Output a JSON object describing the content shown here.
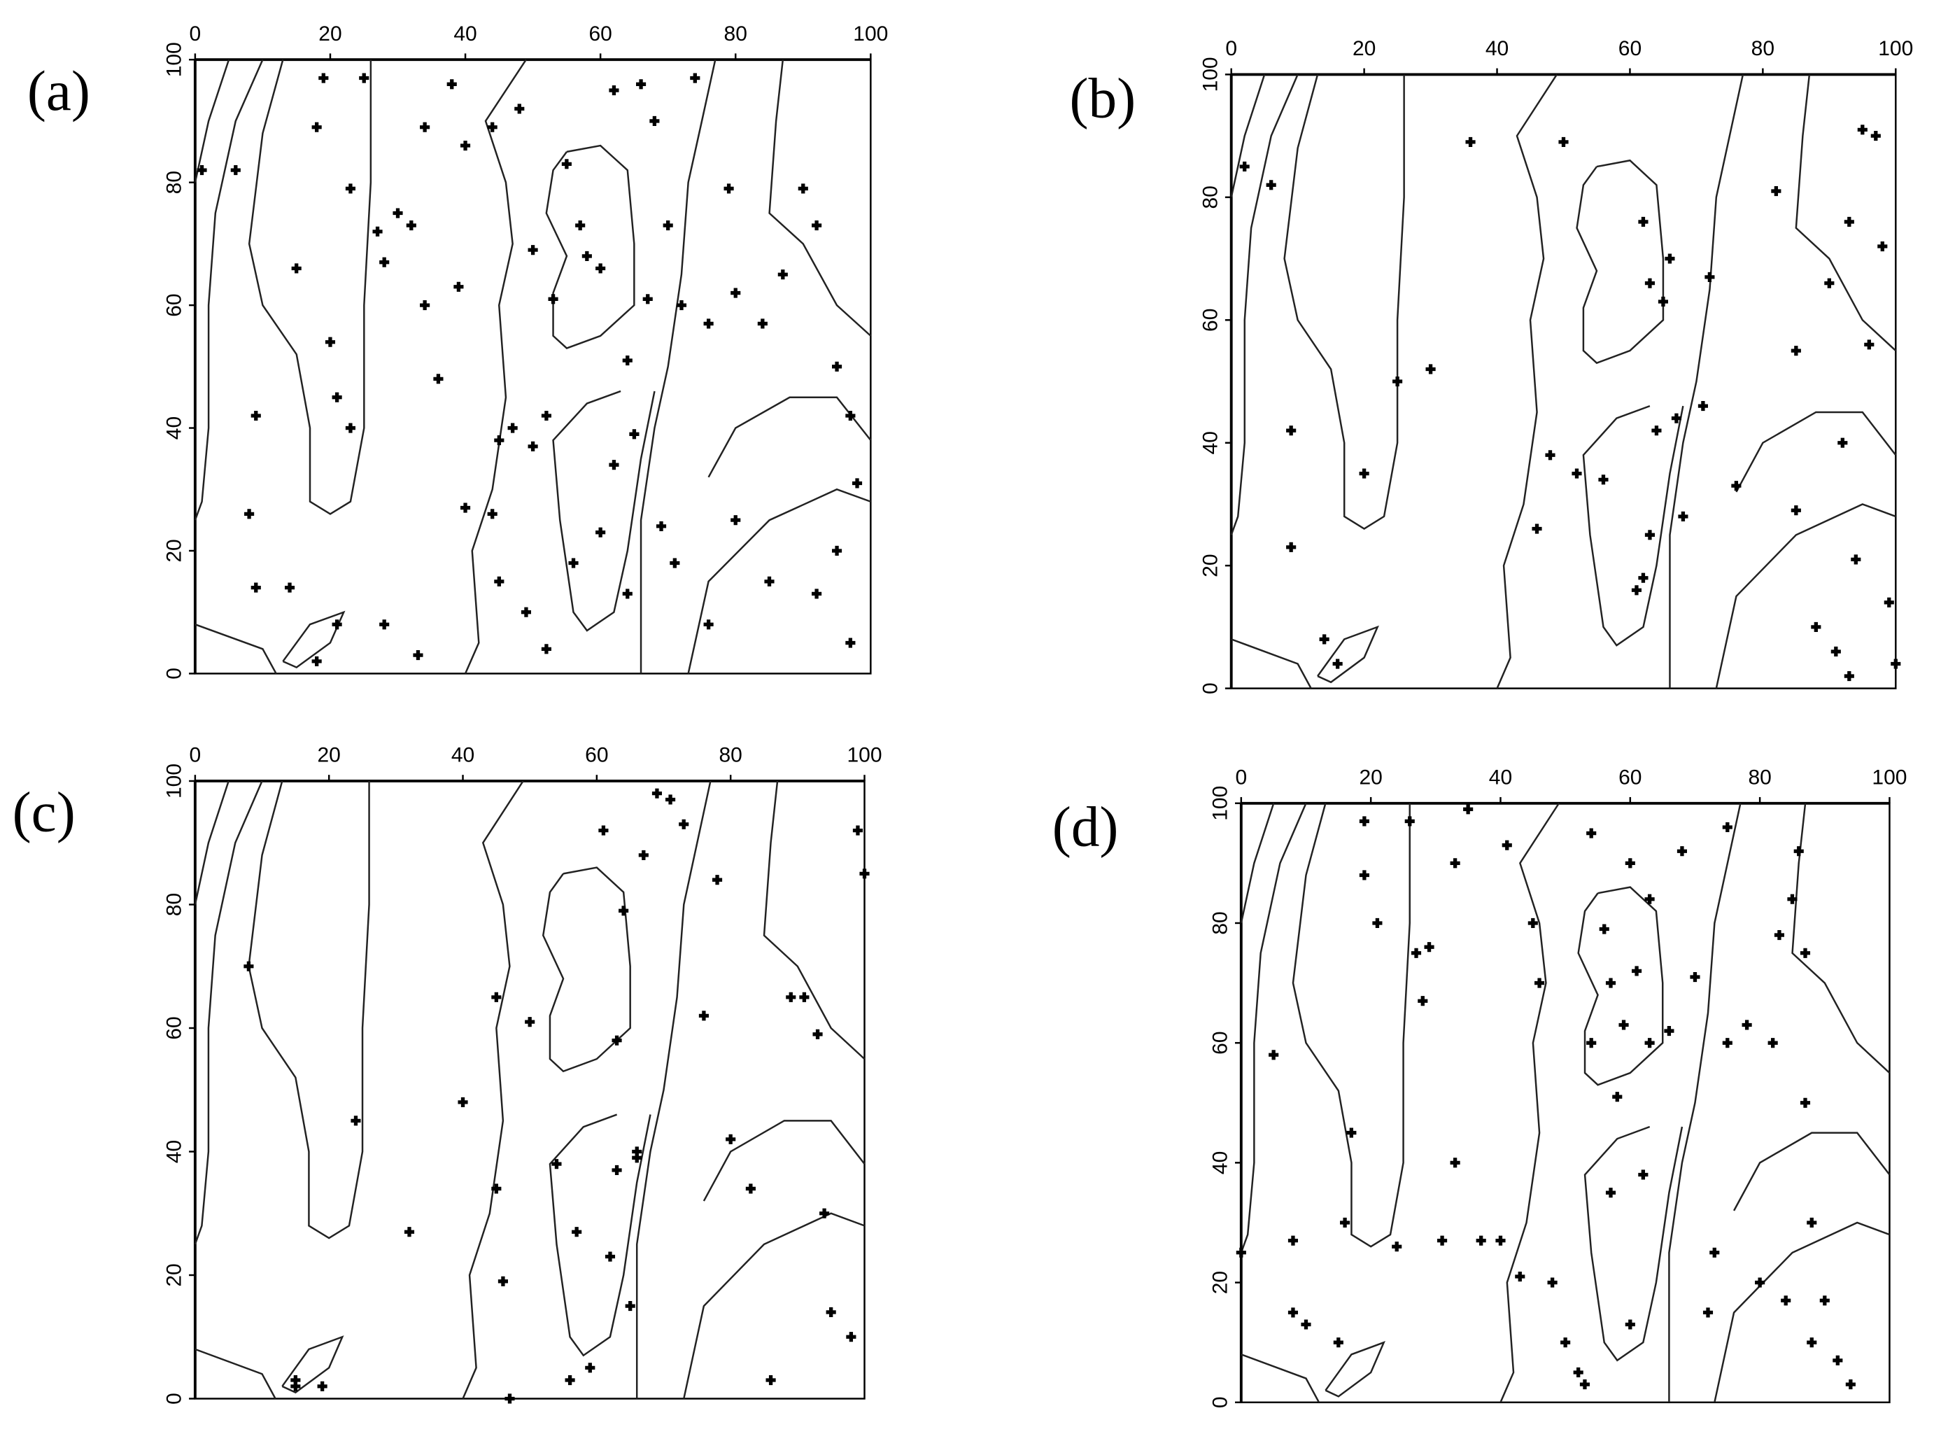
{
  "chart_data": [
    {
      "type": "scatter",
      "title": "(a)",
      "color": "#000000",
      "x": [
        1,
        6,
        8,
        9,
        9,
        14,
        15,
        18,
        19,
        20,
        21,
        23,
        23,
        25,
        27,
        28,
        30,
        32,
        34,
        34,
        36,
        38,
        39,
        40,
        40,
        44,
        45,
        47,
        48,
        50,
        50,
        52,
        53,
        55,
        56,
        57,
        58,
        60,
        62,
        62,
        64,
        66,
        67,
        68,
        69,
        71,
        72,
        74,
        76,
        79,
        80,
        84,
        87,
        90,
        92,
        95,
        97,
        98,
        95,
        92,
        97,
        85,
        80,
        76,
        64,
        52,
        49,
        44,
        33,
        28,
        21,
        18,
        45,
        60,
        65,
        70
      ],
      "y": [
        82,
        82,
        26,
        42,
        14,
        14,
        66,
        89,
        97,
        54,
        45,
        79,
        40,
        97,
        72,
        67,
        75,
        73,
        60,
        89,
        48,
        96,
        63,
        27,
        86,
        89,
        38,
        40,
        92,
        37,
        69,
        42,
        61,
        83,
        18,
        73,
        68,
        66,
        34,
        95,
        51,
        96,
        61,
        90,
        24,
        18,
        60,
        97,
        57,
        79,
        62,
        57,
        65,
        79,
        73,
        50,
        42,
        31,
        20,
        13,
        5,
        15,
        25,
        8,
        13,
        4,
        10,
        26,
        3,
        8,
        8,
        2,
        15,
        23,
        39,
        73
      ],
      "xlim": [
        0,
        100
      ],
      "ylim": [
        0,
        100
      ],
      "xticks": [
        0,
        20,
        40,
        60,
        80,
        100
      ],
      "yticks": [
        0,
        20,
        40,
        60,
        80,
        100
      ]
    },
    {
      "type": "scatter",
      "title": "(b)",
      "color": "#000000",
      "x": [
        2,
        6,
        9,
        9,
        20,
        25,
        30,
        36,
        46,
        48,
        50,
        52,
        56,
        61,
        62,
        63,
        64,
        65,
        63,
        62,
        66,
        67,
        68,
        72,
        71,
        76,
        82,
        85,
        85,
        88,
        90,
        91,
        92,
        94,
        93,
        95,
        96,
        98,
        99,
        100,
        93,
        16,
        14,
        97
      ],
      "y": [
        85,
        82,
        42,
        23,
        35,
        50,
        52,
        89,
        26,
        38,
        89,
        35,
        34,
        16,
        18,
        25,
        42,
        63,
        66,
        76,
        70,
        44,
        28,
        67,
        46,
        33,
        81,
        55,
        29,
        10,
        66,
        6,
        40,
        21,
        76,
        91,
        56,
        72,
        14,
        4,
        2,
        4,
        8,
        90
      ],
      "xlim": [
        0,
        100
      ],
      "ylim": [
        0,
        100
      ],
      "xticks": [
        0,
        20,
        40,
        60,
        80,
        100
      ],
      "yticks": [
        0,
        20,
        40,
        60,
        80,
        100
      ]
    },
    {
      "type": "scatter",
      "title": "(c)",
      "color": "#000000",
      "x": [
        8,
        15,
        15,
        19,
        24,
        32,
        40,
        45,
        46,
        45,
        47,
        50,
        54,
        56,
        57,
        59,
        61,
        62,
        63,
        63,
        64,
        66,
        66,
        65,
        67,
        69,
        71,
        73,
        76,
        78,
        80,
        83,
        86,
        89,
        91,
        93,
        94,
        95,
        98,
        99,
        100
      ],
      "y": [
        70,
        2,
        3,
        2,
        45,
        27,
        48,
        34,
        19,
        65,
        0,
        61,
        38,
        3,
        27,
        5,
        92,
        23,
        58,
        37,
        79,
        39,
        40,
        15,
        88,
        98,
        97,
        93,
        62,
        84,
        42,
        34,
        3,
        65,
        65,
        59,
        30,
        14,
        10,
        92,
        85
      ],
      "xlim": [
        0,
        100
      ],
      "ylim": [
        0,
        100
      ],
      "xticks": [
        0,
        20,
        40,
        60,
        80,
        100
      ],
      "yticks": [
        0,
        20,
        40,
        60,
        80,
        100
      ]
    },
    {
      "type": "scatter",
      "title": "(d)",
      "color": "#000000",
      "x": [
        0,
        5,
        8,
        8,
        10,
        15,
        16,
        17,
        19,
        19,
        21,
        24,
        26,
        27,
        28,
        29,
        31,
        33,
        33,
        35,
        37,
        40,
        41,
        43,
        45,
        46,
        48,
        50,
        52,
        53,
        54,
        54,
        56,
        57,
        57,
        58,
        59,
        60,
        60,
        61,
        62,
        63,
        63,
        66,
        68,
        70,
        72,
        73,
        75,
        75,
        78,
        80,
        82,
        83,
        85,
        86,
        87,
        88,
        84,
        88,
        90,
        92,
        94,
        87
      ],
      "y": [
        25,
        58,
        27,
        15,
        13,
        10,
        30,
        45,
        88,
        97,
        80,
        26,
        97,
        75,
        67,
        76,
        27,
        90,
        40,
        99,
        27,
        27,
        93,
        21,
        80,
        70,
        20,
        10,
        5,
        3,
        95,
        60,
        79,
        70,
        35,
        51,
        63,
        90,
        13,
        72,
        38,
        84,
        60,
        62,
        92,
        71,
        15,
        25,
        60,
        96,
        63,
        20,
        60,
        78,
        84,
        92,
        50,
        30,
        17,
        10,
        17,
        7,
        3,
        75
      ],
      "xlim": [
        0,
        100
      ],
      "ylim": [
        0,
        100
      ],
      "xticks": [
        0,
        20,
        40,
        60,
        80,
        100
      ],
      "yticks": [
        0,
        20,
        40,
        60,
        80,
        100
      ]
    }
  ]
}
